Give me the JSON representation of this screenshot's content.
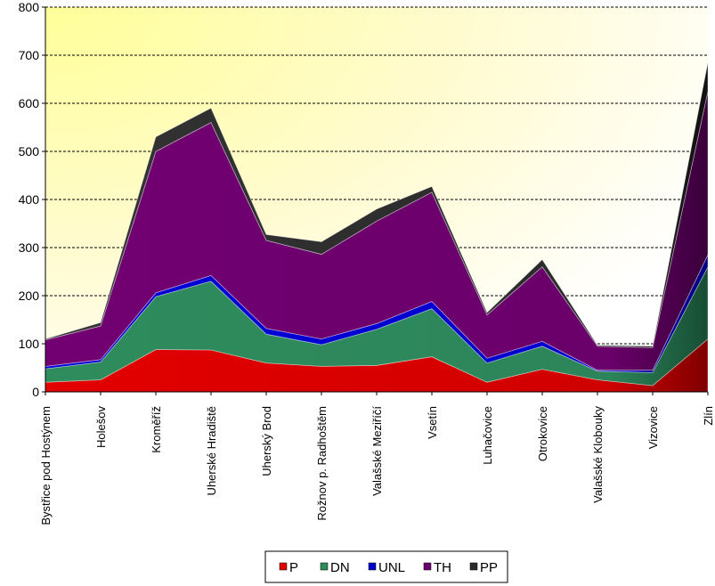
{
  "chart_data": {
    "type": "area",
    "stacked": true,
    "categories": [
      "Bystřice pod Hostýnem",
      "Holešov",
      "Kroměříž",
      "Uherské Hradiště",
      "Uherský Brod",
      "Rožnov p. Radhoštěm",
      "Valašské Meziříčí",
      "Vsetín",
      "Luhačovice",
      "Otrokovice",
      "Valašské Klobouky",
      "Vizovice",
      "Zlín"
    ],
    "series": [
      {
        "name": "P",
        "color": "#e00000",
        "values": [
          20,
          25,
          88,
          87,
          60,
          53,
          55,
          73,
          20,
          47,
          25,
          13,
          110
        ]
      },
      {
        "name": "DN",
        "color": "#2e8b5a",
        "values": [
          28,
          37,
          110,
          143,
          60,
          45,
          75,
          100,
          40,
          48,
          18,
          27,
          150
        ]
      },
      {
        "name": "UNL",
        "color": "#0000cc",
        "values": [
          5,
          5,
          8,
          12,
          12,
          12,
          12,
          15,
          10,
          10,
          2,
          5,
          25
        ]
      },
      {
        "name": "TH",
        "color": "#6d006d",
        "values": [
          55,
          70,
          294,
          318,
          183,
          176,
          213,
          227,
          90,
          155,
          50,
          47,
          340
        ]
      },
      {
        "name": "PP",
        "color": "#2b2b2b",
        "values": [
          2,
          7,
          30,
          30,
          12,
          26,
          25,
          12,
          5,
          15,
          2,
          3,
          60
        ]
      }
    ],
    "ylim": [
      0,
      800
    ],
    "yticks": [
      "0",
      "100",
      "200",
      "300",
      "400",
      "500",
      "600",
      "700",
      "800"
    ],
    "grid": true,
    "legend_position": "bottom",
    "background": "yellow-gradient"
  }
}
